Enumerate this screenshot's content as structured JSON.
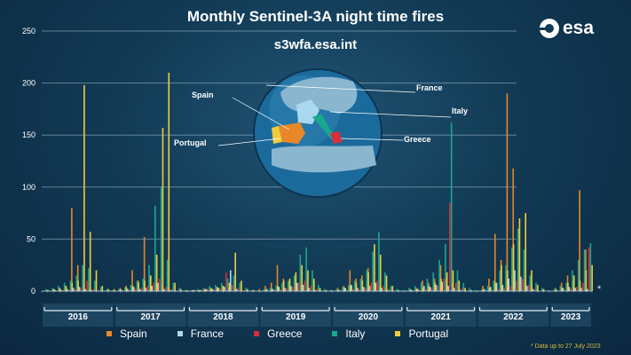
{
  "title": "Monthly Sentinel-3A night time fires",
  "subtitle": "s3wfa.esa.int",
  "logo_text": "esa",
  "footnote": "* Data up to 27 July 2023",
  "end_marker": "*",
  "globe_labels": {
    "spain": "Spain",
    "france": "France",
    "italy": "Italy",
    "portugal": "Portugal",
    "greece": "Greece"
  },
  "colors": {
    "Spain": "#e8872a",
    "France": "#a9d8f0",
    "Greece": "#d62f3a",
    "Italy": "#1aa88c",
    "Portugal": "#f0cc3c"
  },
  "chart_data": {
    "type": "bar",
    "title": "Monthly Sentinel-3A night time fires",
    "subtitle": "s3wfa.esa.int",
    "yticks": [
      0,
      50,
      100,
      150,
      200,
      250
    ],
    "ylim": [
      0,
      250
    ],
    "grid": true,
    "legend_position": "bottom",
    "years": [
      "2016",
      "2017",
      "2018",
      "2019",
      "2020",
      "2021",
      "2022",
      "2023"
    ],
    "series": [
      {
        "name": "Spain",
        "values": [
          0,
          1,
          2,
          3,
          5,
          80,
          25,
          6,
          3,
          1,
          0,
          1,
          2,
          3,
          5,
          20,
          10,
          52,
          15,
          8,
          6,
          3,
          1,
          0,
          0,
          1,
          1,
          2,
          3,
          2,
          5,
          3,
          2,
          1,
          0,
          1,
          2,
          5,
          8,
          25,
          12,
          10,
          15,
          6,
          3,
          2,
          1,
          0,
          1,
          3,
          5,
          20,
          12,
          15,
          22,
          10,
          5,
          3,
          1,
          0,
          0,
          2,
          3,
          10,
          8,
          12,
          25,
          12,
          8,
          3,
          1,
          1,
          0,
          5,
          12,
          55,
          30,
          190,
          118,
          60,
          10,
          5,
          2,
          1,
          0,
          3,
          8,
          15,
          10,
          97,
          40
        ]
      },
      {
        "name": "France",
        "values": [
          0,
          0,
          1,
          1,
          2,
          3,
          4,
          2,
          1,
          0,
          0,
          0,
          0,
          1,
          2,
          4,
          2,
          3,
          5,
          8,
          2,
          1,
          0,
          0,
          0,
          1,
          1,
          2,
          2,
          3,
          4,
          20,
          2,
          0,
          0,
          0,
          0,
          2,
          2,
          4,
          3,
          5,
          8,
          6,
          3,
          1,
          0,
          0,
          0,
          1,
          3,
          6,
          3,
          4,
          5,
          8,
          3,
          1,
          0,
          0,
          0,
          1,
          2,
          5,
          4,
          6,
          9,
          5,
          3,
          1,
          0,
          0,
          0,
          2,
          4,
          8,
          6,
          12,
          20,
          14,
          5,
          2,
          0,
          0,
          0,
          1,
          3,
          4,
          3,
          3,
          2
        ]
      },
      {
        "name": "Greece",
        "values": [
          0,
          0,
          0,
          1,
          1,
          2,
          3,
          10,
          2,
          1,
          0,
          0,
          0,
          0,
          1,
          2,
          3,
          5,
          8,
          12,
          4,
          2,
          0,
          0,
          0,
          0,
          1,
          2,
          2,
          3,
          18,
          6,
          3,
          1,
          0,
          0,
          0,
          0,
          1,
          2,
          3,
          4,
          8,
          10,
          5,
          2,
          0,
          0,
          0,
          0,
          1,
          2,
          2,
          3,
          8,
          10,
          5,
          2,
          0,
          0,
          0,
          0,
          1,
          2,
          3,
          5,
          12,
          85,
          8,
          3,
          0,
          0,
          0,
          0,
          1,
          2,
          3,
          5,
          10,
          12,
          6,
          2,
          0,
          0,
          0,
          0,
          1,
          3,
          4,
          8,
          42
        ]
      },
      {
        "name": "Italy",
        "values": [
          2,
          3,
          5,
          8,
          10,
          15,
          25,
          22,
          10,
          4,
          2,
          1,
          2,
          4,
          6,
          10,
          12,
          25,
          82,
          100,
          30,
          8,
          3,
          1,
          1,
          2,
          3,
          5,
          6,
          8,
          12,
          15,
          8,
          3,
          1,
          0,
          2,
          3,
          5,
          8,
          10,
          15,
          35,
          42,
          20,
          6,
          2,
          1,
          2,
          4,
          6,
          10,
          12,
          20,
          38,
          57,
          18,
          5,
          2,
          1,
          3,
          5,
          8,
          12,
          18,
          30,
          45,
          162,
          20,
          8,
          3,
          1,
          2,
          5,
          10,
          20,
          25,
          42,
          60,
          40,
          15,
          8,
          3,
          1,
          2,
          5,
          8,
          20,
          30,
          40,
          46
        ]
      },
      {
        "name": "Portugal",
        "values": [
          1,
          2,
          3,
          5,
          8,
          10,
          198,
          57,
          20,
          5,
          2,
          1,
          2,
          3,
          5,
          8,
          10,
          15,
          35,
          157,
          210,
          8,
          2,
          1,
          1,
          1,
          2,
          3,
          4,
          5,
          8,
          37,
          10,
          2,
          1,
          0,
          1,
          2,
          5,
          10,
          12,
          18,
          25,
          20,
          12,
          3,
          1,
          0,
          1,
          3,
          5,
          8,
          10,
          18,
          45,
          35,
          15,
          5,
          1,
          0,
          1,
          2,
          3,
          5,
          8,
          12,
          18,
          20,
          10,
          3,
          1,
          0,
          1,
          3,
          8,
          25,
          20,
          45,
          70,
          75,
          20,
          6,
          2,
          0,
          1,
          3,
          8,
          15,
          10,
          20,
          25
        ]
      }
    ]
  }
}
